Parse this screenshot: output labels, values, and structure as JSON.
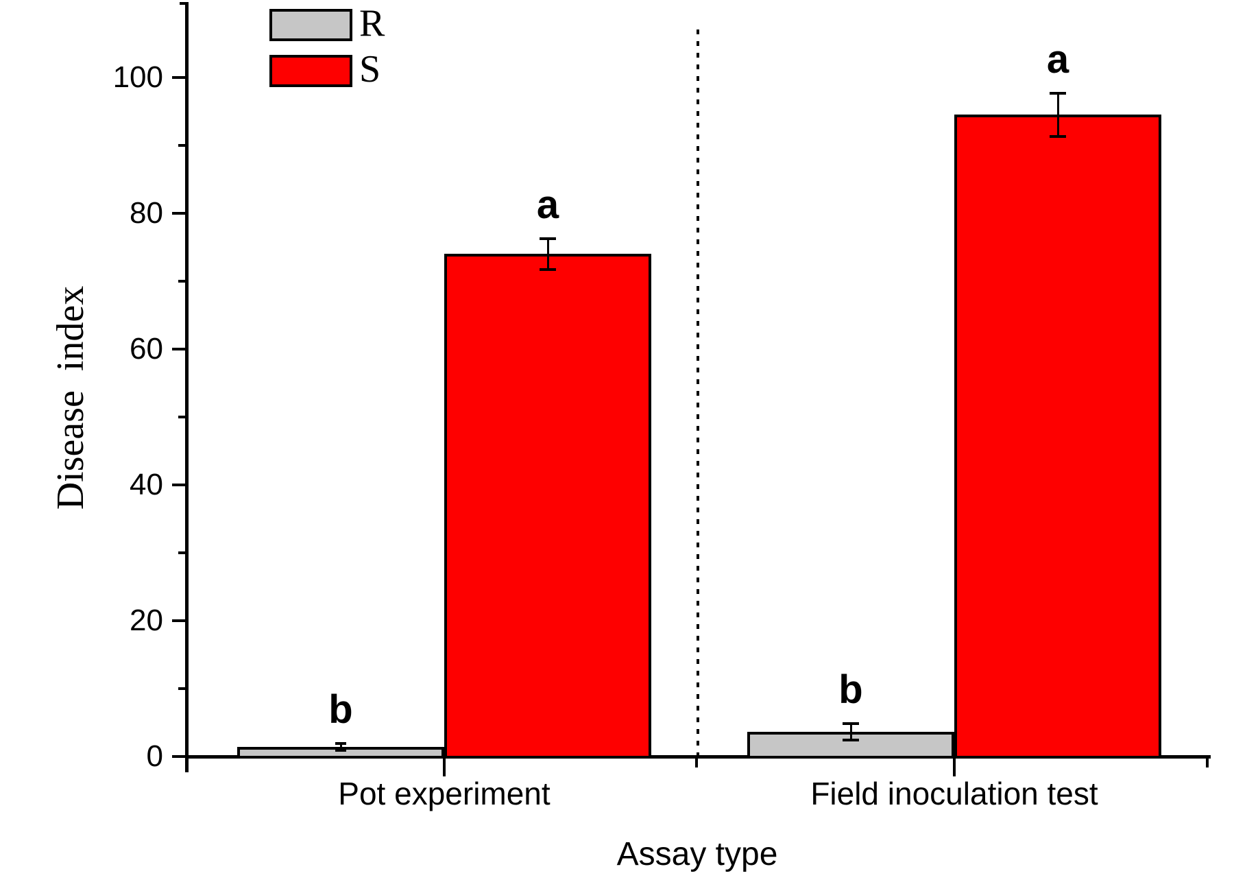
{
  "chart_data": {
    "type": "bar",
    "categories": [
      "Pot experiment",
      "Field inoculation test"
    ],
    "series": [
      {
        "name": "R",
        "color": "#c6c6c6",
        "values": [
          1.4,
          3.6
        ],
        "errors": [
          0.5,
          1.2
        ],
        "sig_labels": [
          "b",
          "b"
        ]
      },
      {
        "name": "S",
        "color": "#fe0000",
        "values": [
          74,
          94.5
        ],
        "errors": [
          2.3,
          3.2
        ],
        "sig_labels": [
          "a",
          "a"
        ]
      }
    ],
    "xlabel": "Assay type",
    "ylabel": "Disease  index",
    "ylim": [
      0,
      111
    ],
    "yticks_major": [
      0,
      20,
      40,
      60,
      80,
      100
    ],
    "yticks_minor": [
      10,
      30,
      50,
      70,
      90
    ],
    "grid": false,
    "legend_position": "top-left",
    "group_separator": "dotted-vertical-line",
    "error_bar_color": "#000000",
    "axis_color": "#000000"
  }
}
